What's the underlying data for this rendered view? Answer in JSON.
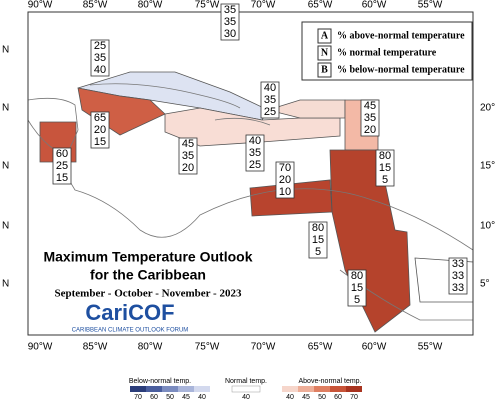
{
  "map": {
    "title": "Maximum Temperature Outlook",
    "title2": "for the Caribbean",
    "season": "September - October - November - 2023",
    "logo": "CariCOF",
    "logo_sub": "CARIBBEAN CLIMATE OUTLOOK FORUM",
    "lon_labels": [
      "90°W",
      "85°W",
      "80°W",
      "75°W",
      "70°W",
      "65°W",
      "60°W",
      "55°W"
    ],
    "lat_labels_left": [
      "N",
      "N",
      "N",
      "N",
      "N"
    ],
    "lat_labels_right": [
      "20°",
      "15°",
      "10°",
      "5°"
    ],
    "key": [
      {
        "letter": "A",
        "text": "% above-normal temperature"
      },
      {
        "letter": "N",
        "text": "% normal temperature"
      },
      {
        "letter": "B",
        "text": "% below-normal temperature"
      }
    ],
    "boxes": [
      [
        25,
        35,
        40
      ],
      [
        35,
        35,
        30
      ],
      [
        40,
        35,
        25
      ],
      [
        45,
        35,
        20
      ],
      [
        65,
        20,
        15
      ],
      [
        60,
        25,
        15
      ],
      [
        45,
        35,
        20
      ],
      [
        40,
        35,
        25
      ],
      [
        70,
        20,
        10
      ],
      [
        80,
        15,
        5
      ],
      [
        80,
        15,
        5
      ],
      [
        80,
        15,
        5
      ],
      [
        33,
        33,
        33
      ]
    ],
    "colorbar": {
      "below_label": "Below-normal temp.",
      "below_ticks": [
        70,
        60,
        50,
        45,
        40
      ],
      "normal_label": "Normal temp.",
      "normal_ticks": [
        40
      ],
      "above_label": "Above-normal temp.",
      "above_ticks": [
        40,
        45,
        50,
        60,
        70
      ]
    }
  }
}
